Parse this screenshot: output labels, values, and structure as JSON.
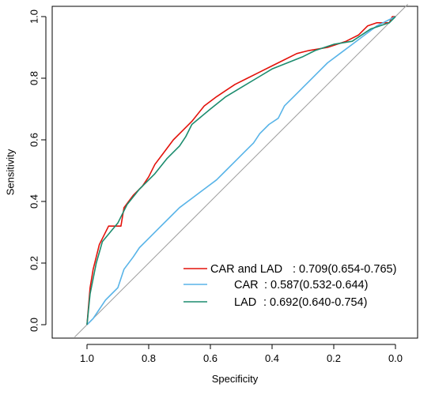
{
  "chart_data": {
    "type": "line",
    "title": "",
    "xlabel": "Specificity",
    "ylabel": "Sensitivity",
    "xlim": [
      1.0,
      0.0
    ],
    "ylim": [
      0.0,
      1.0
    ],
    "x_reversed": true,
    "xticks": [
      "1.0",
      "0.8",
      "0.6",
      "0.4",
      "0.2",
      "0.0"
    ],
    "yticks": [
      "0.0",
      "0.2",
      "0.4",
      "0.6",
      "0.8",
      "1.0"
    ],
    "grid": false,
    "legend_position": "bottom-right",
    "reference_line": {
      "from": [
        1.0,
        0.0
      ],
      "to": [
        0.0,
        1.0
      ],
      "color": "#9e9e9e"
    },
    "series": [
      {
        "name": "CAR and LAD",
        "legend_label": "CAR and LAD",
        "auc_text": ": 0.709(0.654-0.765)",
        "color": "#e3120b",
        "points": [
          [
            1.0,
            0.0
          ],
          [
            0.995,
            0.06
          ],
          [
            0.99,
            0.12
          ],
          [
            0.98,
            0.18
          ],
          [
            0.97,
            0.22
          ],
          [
            0.96,
            0.26
          ],
          [
            0.95,
            0.28
          ],
          [
            0.93,
            0.32
          ],
          [
            0.89,
            0.32
          ],
          [
            0.88,
            0.38
          ],
          [
            0.85,
            0.42
          ],
          [
            0.82,
            0.45
          ],
          [
            0.8,
            0.48
          ],
          [
            0.78,
            0.52
          ],
          [
            0.75,
            0.56
          ],
          [
            0.72,
            0.6
          ],
          [
            0.69,
            0.63
          ],
          [
            0.66,
            0.66
          ],
          [
            0.62,
            0.71
          ],
          [
            0.58,
            0.74
          ],
          [
            0.55,
            0.76
          ],
          [
            0.52,
            0.78
          ],
          [
            0.48,
            0.8
          ],
          [
            0.44,
            0.82
          ],
          [
            0.4,
            0.84
          ],
          [
            0.36,
            0.86
          ],
          [
            0.32,
            0.88
          ],
          [
            0.28,
            0.89
          ],
          [
            0.22,
            0.9
          ],
          [
            0.16,
            0.92
          ],
          [
            0.12,
            0.94
          ],
          [
            0.09,
            0.97
          ],
          [
            0.06,
            0.98
          ],
          [
            0.02,
            0.98
          ],
          [
            0.01,
            1.0
          ],
          [
            0.0,
            1.0
          ]
        ]
      },
      {
        "name": "CAR",
        "legend_label": "CAR",
        "auc_text": ": 0.587(0.532-0.644)",
        "color": "#59b4e8",
        "points": [
          [
            1.0,
            0.0
          ],
          [
            0.98,
            0.02
          ],
          [
            0.96,
            0.05
          ],
          [
            0.94,
            0.08
          ],
          [
            0.92,
            0.1
          ],
          [
            0.9,
            0.12
          ],
          [
            0.89,
            0.15
          ],
          [
            0.88,
            0.18
          ],
          [
            0.85,
            0.22
          ],
          [
            0.83,
            0.25
          ],
          [
            0.8,
            0.28
          ],
          [
            0.77,
            0.31
          ],
          [
            0.73,
            0.35
          ],
          [
            0.7,
            0.38
          ],
          [
            0.66,
            0.41
          ],
          [
            0.62,
            0.44
          ],
          [
            0.58,
            0.47
          ],
          [
            0.55,
            0.5
          ],
          [
            0.52,
            0.53
          ],
          [
            0.49,
            0.56
          ],
          [
            0.46,
            0.59
          ],
          [
            0.44,
            0.62
          ],
          [
            0.41,
            0.65
          ],
          [
            0.38,
            0.67
          ],
          [
            0.36,
            0.71
          ],
          [
            0.33,
            0.74
          ],
          [
            0.3,
            0.77
          ],
          [
            0.28,
            0.79
          ],
          [
            0.25,
            0.82
          ],
          [
            0.22,
            0.85
          ],
          [
            0.18,
            0.88
          ],
          [
            0.14,
            0.91
          ],
          [
            0.1,
            0.94
          ],
          [
            0.06,
            0.97
          ],
          [
            0.02,
            0.99
          ],
          [
            0.0,
            1.0
          ]
        ]
      },
      {
        "name": "LAD",
        "legend_label": "LAD",
        "auc_text": ": 0.692(0.640-0.754)",
        "color": "#1c8c6e",
        "points": [
          [
            1.0,
            0.0
          ],
          [
            0.99,
            0.1
          ],
          [
            0.97,
            0.2
          ],
          [
            0.95,
            0.27
          ],
          [
            0.9,
            0.33
          ],
          [
            0.87,
            0.39
          ],
          [
            0.83,
            0.44
          ],
          [
            0.78,
            0.49
          ],
          [
            0.74,
            0.54
          ],
          [
            0.7,
            0.58
          ],
          [
            0.68,
            0.61
          ],
          [
            0.66,
            0.65
          ],
          [
            0.6,
            0.7
          ],
          [
            0.55,
            0.74
          ],
          [
            0.5,
            0.77
          ],
          [
            0.45,
            0.8
          ],
          [
            0.4,
            0.83
          ],
          [
            0.35,
            0.85
          ],
          [
            0.3,
            0.87
          ],
          [
            0.26,
            0.89
          ],
          [
            0.2,
            0.91
          ],
          [
            0.14,
            0.92
          ],
          [
            0.08,
            0.96
          ],
          [
            0.02,
            0.98
          ],
          [
            0.0,
            1.0
          ]
        ]
      }
    ]
  }
}
